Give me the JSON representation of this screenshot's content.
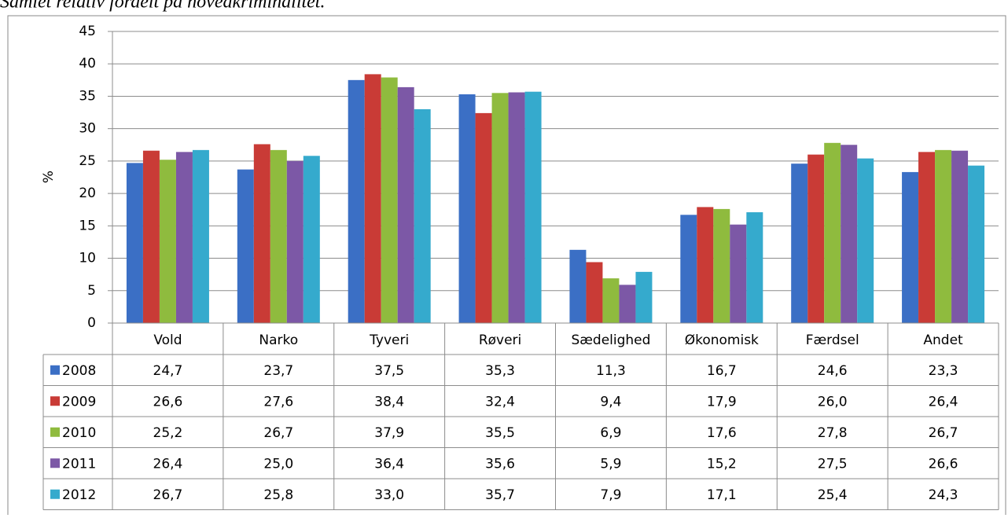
{
  "chart_data": {
    "type": "bar",
    "title": "Samlet relativ fordelt på hovedkriminalitet.",
    "ylabel": "%",
    "categories": [
      "Vold",
      "Narko",
      "Tyveri",
      "Røveri",
      "Sædelighed",
      "Økonomisk",
      "Færdsel",
      "Andet"
    ],
    "series": [
      {
        "name": "2008",
        "color": "#3b6fc5",
        "values": [
          24.7,
          23.7,
          37.5,
          35.3,
          11.3,
          16.7,
          24.6,
          23.3
        ],
        "value_labels": [
          "24,7",
          "23,7",
          "37,5",
          "35,3",
          "11,3",
          "16,7",
          "24,6",
          "23,3"
        ]
      },
      {
        "name": "2009",
        "color": "#c93b36",
        "values": [
          26.6,
          27.6,
          38.4,
          32.4,
          9.4,
          17.9,
          26.0,
          26.4
        ],
        "value_labels": [
          "26,6",
          "27,6",
          "38,4",
          "32,4",
          "9,4",
          "17,9",
          "26,0",
          "26,4"
        ]
      },
      {
        "name": "2010",
        "color": "#8fbb3e",
        "values": [
          25.2,
          26.7,
          37.9,
          35.5,
          6.9,
          17.6,
          27.8,
          26.7
        ],
        "value_labels": [
          "25,2",
          "26,7",
          "37,9",
          "35,5",
          "6,9",
          "17,6",
          "27,8",
          "26,7"
        ]
      },
      {
        "name": "2011",
        "color": "#7c58a6",
        "values": [
          26.4,
          25.0,
          36.4,
          35.6,
          5.9,
          15.2,
          27.5,
          26.6
        ],
        "value_labels": [
          "26,4",
          "25,0",
          "36,4",
          "35,6",
          "5,9",
          "15,2",
          "27,5",
          "26,6"
        ]
      },
      {
        "name": "2012",
        "color": "#35aacd",
        "values": [
          26.7,
          25.8,
          33.0,
          35.7,
          7.9,
          17.1,
          25.4,
          24.3
        ],
        "value_labels": [
          "26,7",
          "25,8",
          "33,0",
          "35,7",
          "7,9",
          "17,1",
          "25,4",
          "24,3"
        ]
      }
    ],
    "ylim": [
      0,
      45
    ],
    "yticks": [
      0,
      5,
      10,
      15,
      20,
      25,
      30,
      35,
      40,
      45
    ],
    "grid": true,
    "data_table": true
  }
}
